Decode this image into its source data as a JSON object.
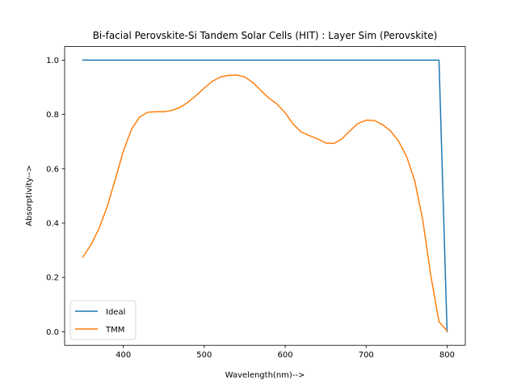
{
  "chart_data": {
    "type": "line",
    "title": "Bi-facial Perovskite-Si Tandem Solar Cells (HIT) : Layer Sim (Perovskite)",
    "xlabel": "Wavelength(nm)-->",
    "ylabel": "Absorptivity-->",
    "xlim": [
      327.5,
      822.5
    ],
    "ylim": [
      -0.05,
      1.05
    ],
    "xticks": [
      400,
      500,
      600,
      700,
      800
    ],
    "yticks": [
      0.0,
      0.2,
      0.4,
      0.6,
      0.8,
      1.0
    ],
    "xtick_labels": [
      "400",
      "500",
      "600",
      "700",
      "800"
    ],
    "ytick_labels": [
      "0.0",
      "0.2",
      "0.4",
      "0.6",
      "0.8",
      "1.0"
    ],
    "grid": false,
    "legend_position": "lower-left",
    "series": [
      {
        "name": "Ideal",
        "color": "#1f77b4",
        "x": [
          350,
          790,
          800
        ],
        "y": [
          1.0,
          1.0,
          0.0
        ]
      },
      {
        "name": "TMM",
        "color": "#ff7f0e",
        "x": [
          350,
          360,
          370,
          380,
          390,
          400,
          410,
          420,
          430,
          440,
          450,
          460,
          470,
          480,
          490,
          500,
          510,
          520,
          530,
          540,
          550,
          560,
          570,
          580,
          590,
          600,
          610,
          620,
          630,
          640,
          650,
          660,
          670,
          680,
          690,
          700,
          710,
          720,
          730,
          740,
          750,
          760,
          770,
          780,
          790,
          800
        ],
        "y": [
          0.275,
          0.32,
          0.38,
          0.46,
          0.56,
          0.665,
          0.745,
          0.79,
          0.808,
          0.81,
          0.81,
          0.815,
          0.826,
          0.845,
          0.87,
          0.897,
          0.922,
          0.938,
          0.944,
          0.945,
          0.938,
          0.918,
          0.888,
          0.86,
          0.838,
          0.806,
          0.764,
          0.735,
          0.722,
          0.71,
          0.695,
          0.693,
          0.71,
          0.74,
          0.767,
          0.779,
          0.778,
          0.763,
          0.74,
          0.702,
          0.645,
          0.556,
          0.41,
          0.205,
          0.037,
          0.003
        ]
      }
    ]
  }
}
